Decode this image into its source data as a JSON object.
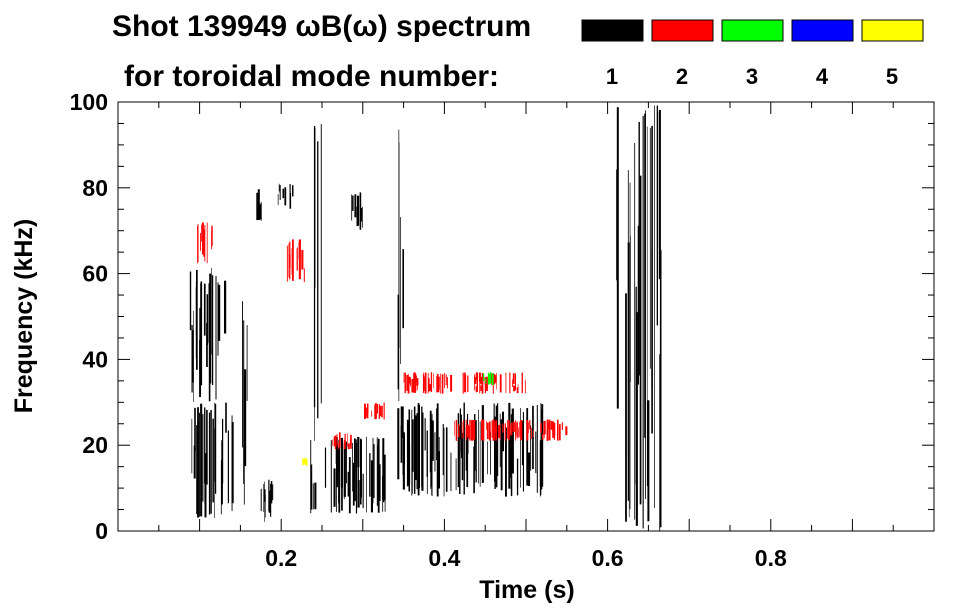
{
  "chart_data": {
    "type": "spectrogram",
    "title_line1": "Shot 139949 ωB(ω) spectrum",
    "title_line2": "for toroidal mode number:",
    "xlabel": "Time (s)",
    "ylabel": "Frequency (kHz)",
    "xlim": [
      0.0,
      1.0
    ],
    "ylim": [
      0,
      100
    ],
    "xticks": [
      {
        "value": 0.2,
        "label": "0.2"
      },
      {
        "value": 0.4,
        "label": "0.4"
      },
      {
        "value": 0.6,
        "label": "0.6"
      },
      {
        "value": 0.8,
        "label": "0.8"
      }
    ],
    "yticks": [
      {
        "value": 0,
        "label": "0"
      },
      {
        "value": 20,
        "label": "20"
      },
      {
        "value": 40,
        "label": "40"
      },
      {
        "value": 60,
        "label": "60"
      },
      {
        "value": 80,
        "label": "80"
      },
      {
        "value": 100,
        "label": "100"
      }
    ],
    "legend": [
      {
        "n": "1",
        "color": "#000000"
      },
      {
        "n": "2",
        "color": "#ff0000"
      },
      {
        "n": "3",
        "color": "#00ff00"
      },
      {
        "n": "4",
        "color": "#0000ff"
      },
      {
        "n": "5",
        "color": "#ffff00"
      }
    ],
    "regions": [
      {
        "n": 1,
        "t": [
          0.085,
          0.13
        ],
        "f": [
          30,
          62
        ]
      },
      {
        "n": 1,
        "t": [
          0.09,
          0.14
        ],
        "f": [
          3,
          30
        ]
      },
      {
        "n": 1,
        "t": [
          0.15,
          0.16
        ],
        "f": [
          5,
          55
        ]
      },
      {
        "n": 1,
        "t": [
          0.165,
          0.175
        ],
        "f": [
          72,
          80
        ]
      },
      {
        "n": 1,
        "t": [
          0.195,
          0.215
        ],
        "f": [
          75,
          81
        ]
      },
      {
        "n": 1,
        "t": [
          0.17,
          0.19
        ],
        "f": [
          2,
          12
        ]
      },
      {
        "n": 1,
        "t": [
          0.235,
          0.33
        ],
        "f": [
          4,
          22
        ]
      },
      {
        "n": 1,
        "t": [
          0.24,
          0.25
        ],
        "f": [
          20,
          100
        ]
      },
      {
        "n": 1,
        "t": [
          0.285,
          0.3
        ],
        "f": [
          70,
          79
        ]
      },
      {
        "n": 1,
        "t": [
          0.34,
          0.52
        ],
        "f": [
          8,
          30
        ]
      },
      {
        "n": 1,
        "t": [
          0.34,
          0.35
        ],
        "f": [
          30,
          95
        ]
      },
      {
        "n": 1,
        "t": [
          0.61,
          0.665
        ],
        "f": [
          0,
          100
        ]
      },
      {
        "n": 2,
        "t": [
          0.095,
          0.115
        ],
        "f": [
          62,
          72
        ]
      },
      {
        "n": 2,
        "t": [
          0.205,
          0.23
        ],
        "f": [
          58,
          68
        ]
      },
      {
        "n": 2,
        "t": [
          0.3,
          0.33
        ],
        "f": [
          26,
          30
        ]
      },
      {
        "n": 2,
        "t": [
          0.26,
          0.285
        ],
        "f": [
          19,
          23
        ]
      },
      {
        "n": 2,
        "t": [
          0.35,
          0.5
        ],
        "f": [
          32,
          37
        ]
      },
      {
        "n": 2,
        "t": [
          0.41,
          0.55
        ],
        "f": [
          21,
          26
        ]
      },
      {
        "n": 3,
        "t": [
          0.445,
          0.46
        ],
        "f": [
          34,
          37
        ]
      },
      {
        "n": 5,
        "t": [
          0.225,
          0.23
        ],
        "f": [
          15,
          17
        ]
      }
    ]
  }
}
